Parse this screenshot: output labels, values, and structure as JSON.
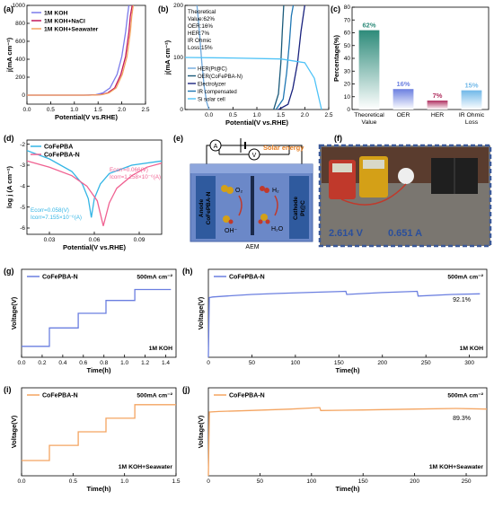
{
  "figure": {
    "background": "#ffffff"
  },
  "chart_data": [
    {
      "id": "a",
      "type": "line",
      "panel_label": "(a)",
      "xlabel": "Potential(V vs.RHE)",
      "ylabel": "j(mA cm⁻²)",
      "xlim": [
        0,
        2.5
      ],
      "ylim": [
        -100,
        1000
      ],
      "xticks": [
        "0.0",
        "0.5",
        "1.0",
        "1.5",
        "2.0",
        "2.5"
      ],
      "yticks": [
        "0",
        "200",
        "400",
        "600",
        "800",
        "1000"
      ],
      "legend_position": "top-left",
      "series": [
        {
          "name": "1M KOH",
          "color": "#7b7bea",
          "x": [
            0,
            1.2,
            1.45,
            1.6,
            1.75,
            1.9,
            2.0,
            2.08,
            2.12,
            2.15
          ],
          "y": [
            0,
            0,
            5,
            25,
            80,
            230,
            430,
            700,
            880,
            1000
          ]
        },
        {
          "name": "1M KOH+NaCl",
          "color": "#c2185b",
          "x": [
            0,
            1.3,
            1.55,
            1.7,
            1.85,
            1.98,
            2.08,
            2.15,
            2.18,
            2.22
          ],
          "y": [
            0,
            0,
            5,
            25,
            80,
            230,
            430,
            700,
            880,
            1000
          ]
        },
        {
          "name": "1M KOH+Seawater",
          "color": "#f4a460",
          "x": [
            0,
            1.32,
            1.58,
            1.73,
            1.88,
            2.01,
            2.11,
            2.18,
            2.21,
            2.24
          ],
          "y": [
            0,
            0,
            5,
            25,
            80,
            230,
            430,
            700,
            880,
            1000
          ]
        }
      ]
    },
    {
      "id": "b",
      "type": "line",
      "panel_label": "(b)",
      "xlabel": "Potential(V vs.RHE)",
      "ylabel": "j(mA cm⁻²)",
      "xlim": [
        -0.5,
        2.5
      ],
      "ylim": [
        0,
        200
      ],
      "xticks": [
        "0.0",
        "0.5",
        "1.0",
        "1.5",
        "2.0",
        "2.5"
      ],
      "yticks": [
        "0",
        "100",
        "200"
      ],
      "annotation": [
        "Theoretical",
        "Value:62%",
        "OER:16%",
        "HER:7%",
        "IR Ohmic",
        "Loss:15%"
      ],
      "legend_position": "bottom-left",
      "series": [
        {
          "name": "HER(Pt@C)",
          "color": "#6fa8dc",
          "x": [
            0.0,
            -0.05,
            -0.1,
            -0.15,
            -0.2,
            -0.25
          ],
          "y": [
            0,
            15,
            45,
            90,
            150,
            200
          ]
        },
        {
          "name": "OER(CoFePBA-N)",
          "color": "#1a5a7a",
          "x": [
            1.35,
            1.45,
            1.5,
            1.53,
            1.56
          ],
          "y": [
            0,
            30,
            90,
            150,
            200
          ]
        },
        {
          "name": "Electrolyzer",
          "color": "#1a237e",
          "x": [
            1.45,
            1.65,
            1.75,
            1.85,
            1.92,
            2.0
          ],
          "y": [
            0,
            10,
            40,
            90,
            150,
            200
          ]
        },
        {
          "name": "IR compensated",
          "color": "#1f77b4",
          "x": [
            1.4,
            1.55,
            1.62,
            1.68,
            1.72,
            1.76
          ],
          "y": [
            0,
            20,
            70,
            130,
            180,
            200
          ]
        },
        {
          "name": "Si solar cell",
          "color": "#4fc3f7",
          "x": [
            -0.5,
            0.5,
            1.5,
            2.0,
            2.2,
            2.3,
            2.35
          ],
          "y": [
            100,
            99,
            97,
            90,
            60,
            20,
            0
          ]
        }
      ]
    },
    {
      "id": "c",
      "type": "bar",
      "panel_label": "(c)",
      "ylabel": "Percentage(%)",
      "ylim": [
        0,
        80
      ],
      "yticks": [
        "0",
        "10",
        "20",
        "30",
        "40",
        "50",
        "60",
        "70",
        "80"
      ],
      "categories": [
        [
          "Theoretical",
          "Value"
        ],
        [
          "OER"
        ],
        [
          "HER"
        ],
        [
          "IR Ohmic",
          "Loss"
        ]
      ],
      "values": [
        62,
        16,
        7,
        15
      ],
      "value_labels": [
        "62%",
        "16%",
        "7%",
        "15%"
      ],
      "colors": [
        "#2e8b7a",
        "#6b7fe0",
        "#b03060",
        "#70b8e8"
      ]
    },
    {
      "id": "d",
      "type": "line",
      "panel_label": "(d)",
      "xlabel": "Potential(V vs.RHE)",
      "ylabel": "log j (A cm⁻²)",
      "xlim": [
        0.015,
        0.105
      ],
      "ylim": [
        -6.3,
        -1.8
      ],
      "xticks": [
        "0.03",
        "0.06",
        "0.09"
      ],
      "yticks": [
        "-2",
        "-3",
        "-4",
        "-5",
        "-6"
      ],
      "legend_position": "top-left",
      "series": [
        {
          "name": "CoFePBA",
          "color": "#33b5e5",
          "x": [
            0.015,
            0.03,
            0.045,
            0.052,
            0.056,
            0.058,
            0.06,
            0.064,
            0.07,
            0.085,
            0.105
          ],
          "y": [
            -2.3,
            -2.7,
            -3.3,
            -3.9,
            -4.6,
            -5.5,
            -4.6,
            -3.9,
            -3.4,
            -3.0,
            -2.8
          ]
        },
        {
          "name": "CoFePBA-N",
          "color": "#f06292",
          "x": [
            0.015,
            0.03,
            0.045,
            0.055,
            0.062,
            0.066,
            0.07,
            0.075,
            0.085,
            0.095,
            0.105
          ],
          "y": [
            -2.8,
            -3.1,
            -3.5,
            -4.0,
            -4.7,
            -5.9,
            -4.8,
            -4.1,
            -3.5,
            -3.1,
            -2.9
          ]
        }
      ],
      "annotations": [
        {
          "color": "#f06292",
          "lines": [
            "Ecorr=0.066(V)",
            "Icorr=1.258×10⁻⁶(A)"
          ]
        },
        {
          "color": "#33b5e5",
          "lines": [
            "Ecorr=0.058(V)",
            "Icorr=7.155×10⁻⁶(A)"
          ]
        }
      ]
    },
    {
      "id": "g",
      "type": "line",
      "panel_label": "(g)",
      "xlabel": "Time(h)",
      "ylabel": "Voltage(V)",
      "xlim": [
        0,
        1.5
      ],
      "ylim": [
        0,
        2.4
      ],
      "xticks": [
        "0.0",
        "0.2",
        "0.4",
        "0.6",
        "0.8",
        "1.0",
        "1.2",
        "1.4"
      ],
      "legend_name": "CoFePBA-N",
      "condition": "500mA cm⁻²",
      "electrolyte": "1M KOH",
      "series": [
        {
          "name": "CoFePBA-N",
          "color": "#6b7fe0",
          "x": [
            0,
            0.27,
            0.27,
            0.55,
            0.55,
            0.82,
            0.82,
            1.1,
            1.1,
            1.45
          ],
          "y": [
            0.3,
            0.3,
            0.8,
            0.8,
            1.2,
            1.2,
            1.55,
            1.55,
            1.85,
            1.85
          ]
        }
      ]
    },
    {
      "id": "h",
      "type": "line",
      "panel_label": "(h)",
      "xlabel": "Time(h)",
      "ylabel": "Voltage(V)",
      "xlim": [
        0,
        320
      ],
      "ylim": [
        0,
        2.8
      ],
      "xticks": [
        "0",
        "50",
        "100",
        "150",
        "200",
        "250",
        "300"
      ],
      "legend_name": "CoFePBA-N",
      "condition": "500mA cm⁻²",
      "electrolyte": "1M KOH",
      "retention": "92.1%",
      "series": [
        {
          "name": "CoFePBA-N",
          "color": "#6b7fe0",
          "x": [
            0,
            1,
            5,
            20,
            50,
            80,
            120,
            158,
            159,
            180,
            200,
            240,
            241,
            280,
            312
          ],
          "y": [
            0,
            1.9,
            1.92,
            1.95,
            2.0,
            2.03,
            2.07,
            2.1,
            2.0,
            2.03,
            2.06,
            2.1,
            1.95,
            2.0,
            2.02
          ]
        }
      ]
    },
    {
      "id": "i",
      "type": "line",
      "panel_label": "(i)",
      "xlabel": "Time(h)",
      "ylabel": "Voltage(V)",
      "xlim": [
        0,
        1.5
      ],
      "ylim": [
        0,
        2.6
      ],
      "xticks": [
        "0.0",
        "0.5",
        "1.0",
        "1.5"
      ],
      "legend_name": "CoFePBA-N",
      "condition": "500mA cm⁻²",
      "electrolyte": "1M KOH+Seawater",
      "series": [
        {
          "name": "CoFePBA-N",
          "color": "#f4a460",
          "x": [
            0,
            0.27,
            0.27,
            0.55,
            0.55,
            0.82,
            0.82,
            1.1,
            1.1,
            1.5
          ],
          "y": [
            0.45,
            0.45,
            0.9,
            0.9,
            1.3,
            1.3,
            1.7,
            1.7,
            2.1,
            2.1
          ]
        }
      ]
    },
    {
      "id": "j",
      "type": "line",
      "panel_label": "(j)",
      "xlabel": "Time(h)",
      "ylabel": "Voltage(V)",
      "xlim": [
        0,
        270
      ],
      "ylim": [
        0,
        2.9
      ],
      "xticks": [
        "0",
        "50",
        "100",
        "150",
        "200",
        "250"
      ],
      "legend_name": "CoFePBA-N",
      "condition": "500mA cm⁻²",
      "electrolyte": "1M KOH+Seawater",
      "retention": "89.3%",
      "series": [
        {
          "name": "CoFePBA-N",
          "color": "#f4a460",
          "x": [
            0,
            1,
            10,
            40,
            80,
            108,
            109,
            150,
            200,
            240,
            270
          ],
          "y": [
            0,
            2.1,
            2.12,
            2.15,
            2.2,
            2.25,
            2.15,
            2.17,
            2.2,
            2.22,
            2.2
          ]
        }
      ]
    }
  ],
  "panel_e": {
    "panel_label": "(e)",
    "solar_label": "Solar energy",
    "ammeter_symbol": "A",
    "voltmeter_symbol": "V",
    "anode_label": [
      "Anode",
      "CoFePBA-N"
    ],
    "cathode_label": [
      "Cathode",
      "Pt@C"
    ],
    "membrane_label": "AEM",
    "species": {
      "o2": "O₂",
      "oh": "OH⁻",
      "h2": "H₂",
      "h2o": "H₂O"
    },
    "colors": {
      "tank": "#6b88c8",
      "electrode": "#2f5a9e",
      "membrane": "#1b2a4a",
      "o_atom": "#d4a017",
      "h_atom": "#c0392b",
      "solar": "#e67e22"
    }
  },
  "panel_f": {
    "panel_label": "(f)",
    "voltage_reading": "2.614 V",
    "current_reading": "0.651 A",
    "colors": {
      "frame": "#3b5998",
      "reading": "#2a4f9c"
    }
  }
}
